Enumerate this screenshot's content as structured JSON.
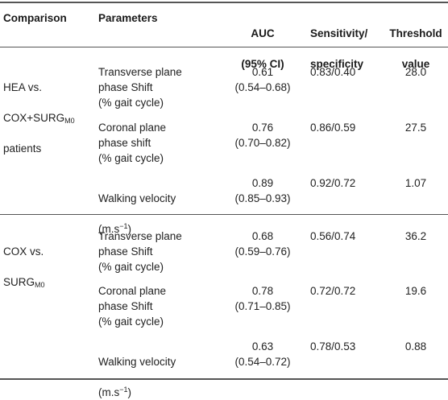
{
  "table": {
    "headers": {
      "comparison": "Comparison",
      "parameters": "Parameters",
      "auc_line1": "AUC",
      "auc_line2": "(95% CI)",
      "sens_line1": "Sensitivity/",
      "sens_line2": "specificity",
      "thr_line1": "Threshold",
      "thr_line2": "value"
    },
    "groups": [
      {
        "comparison": {
          "line1": "HEA vs.",
          "line2_pre": "COX+SURG",
          "line2_sub": "M0",
          "line3": "patients"
        },
        "rows": [
          {
            "parameter": "Transverse plane\nphase Shift\n(% gait cycle)",
            "auc": "0.61\n(0.54–0.68)",
            "sens_spec": "0.83/0.40",
            "threshold": "28.0"
          },
          {
            "parameter": "Coronal plane\nphase shift\n(% gait cycle)",
            "auc": "0.76\n(0.70–0.82)",
            "sens_spec": "0.86/0.59",
            "threshold": "27.5"
          },
          {
            "parameter_line1": "Walking velocity",
            "parameter_unit_pre": "(m.s",
            "parameter_unit_sup": "−1",
            "parameter_unit_post": ")",
            "auc": "0.89\n(0.85–0.93)",
            "sens_spec": "0.92/0.72",
            "threshold": "1.07"
          }
        ]
      },
      {
        "comparison": {
          "line1": "COX vs.",
          "line2_pre": "SURG",
          "line2_sub": "M0"
        },
        "rows": [
          {
            "parameter": "Transverse plane\nphase Shift\n(% gait cycle)",
            "auc": "0.68\n(0.59–0.76)",
            "sens_spec": "0.56/0.74",
            "threshold": "36.2"
          },
          {
            "parameter": "Coronal plane\nphase Shift\n(% gait cycle)",
            "auc": "0.78\n(0.71–0.85)",
            "sens_spec": "0.72/0.72",
            "threshold": "19.6"
          },
          {
            "parameter_line1": "Walking velocity",
            "parameter_unit_pre": "(m.s",
            "parameter_unit_sup": "−1",
            "parameter_unit_post": ")",
            "auc": "0.63\n(0.54–0.72)",
            "sens_spec": "0.78/0.53",
            "threshold": "0.88"
          }
        ]
      }
    ]
  }
}
